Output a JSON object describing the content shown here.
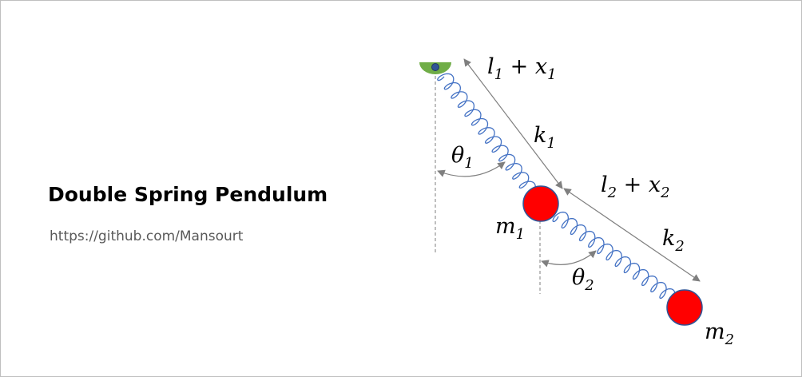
{
  "title": "Double Spring Pendulum",
  "url": "https://github.com/Mansourt",
  "labels": {
    "theta1": {
      "sym": "θ",
      "sub": "1"
    },
    "theta2": {
      "sym": "θ",
      "sub": "2"
    },
    "k1": {
      "sym": "k",
      "sub": "1"
    },
    "k2": {
      "sym": "k",
      "sub": "2"
    },
    "m1": {
      "sym": "m",
      "sub": "1"
    },
    "m2": {
      "sym": "m",
      "sub": "2"
    },
    "len1": {
      "a": "l",
      "a_sub": "1",
      "op": " + ",
      "b": "x",
      "b_sub": "1"
    },
    "len2": {
      "a": "l",
      "a_sub": "2",
      "op": " + ",
      "b": "x",
      "b_sub": "2"
    }
  },
  "colors": {
    "mass": "#ff0000",
    "spring": "#4472c4",
    "pivot": "#70ad47",
    "pivot_dot": "#2f5597",
    "arrow": "#7f7f7f"
  }
}
